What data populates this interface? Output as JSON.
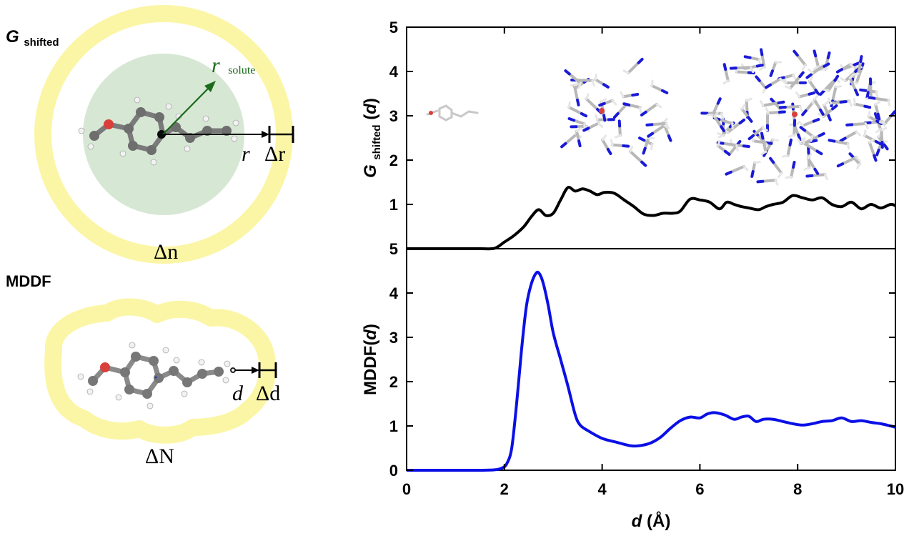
{
  "schematic": {
    "top_label_main": "G",
    "top_label_sub": "shifted",
    "bottom_label": "MDDF",
    "r_solute_main": "r",
    "r_solute_sub": "solute",
    "r_label": "r",
    "delta_r_label": "Δr",
    "delta_n_label": "Δn",
    "d_label": "d",
    "delta_d_label": "Δd",
    "delta_N_label": "ΔN",
    "colors": {
      "shell": "#fbf6a6",
      "solute_sphere": "#cfe4cc",
      "arrow_green": "#1c6b1c",
      "carbon": "#6e6e6e",
      "oxygen": "#d9403a",
      "hydrogen": "#f2f2f2"
    }
  },
  "chart_data": [
    {
      "type": "line",
      "panel": "top",
      "ylabel_main": "G",
      "ylabel_sub": "shifted",
      "ylabel_tail": "(d)",
      "xlim": [
        0,
        10
      ],
      "ylim": [
        0,
        5
      ],
      "y_ticks": [
        1,
        2,
        3,
        4,
        5
      ],
      "series": [
        {
          "color": "#000000",
          "x": [
            0,
            0.5,
            1.0,
            1.5,
            1.8,
            2.0,
            2.2,
            2.4,
            2.55,
            2.7,
            2.85,
            3.0,
            3.15,
            3.3,
            3.45,
            3.6,
            3.75,
            3.9,
            4.05,
            4.25,
            4.45,
            4.65,
            4.85,
            5.05,
            5.25,
            5.45,
            5.6,
            5.8,
            6.0,
            6.2,
            6.4,
            6.55,
            6.7,
            6.85,
            7.0,
            7.2,
            7.35,
            7.5,
            7.7,
            7.9,
            8.1,
            8.3,
            8.5,
            8.7,
            8.9,
            9.1,
            9.3,
            9.5,
            9.7,
            9.9,
            10.0
          ],
          "y": [
            0,
            0,
            0,
            0,
            0.01,
            0.15,
            0.3,
            0.5,
            0.72,
            0.88,
            0.75,
            0.8,
            1.1,
            1.38,
            1.3,
            1.35,
            1.3,
            1.22,
            1.27,
            1.25,
            1.1,
            0.95,
            0.78,
            0.75,
            0.8,
            0.8,
            0.85,
            1.12,
            1.1,
            1.05,
            0.9,
            1.05,
            1.0,
            0.95,
            0.92,
            0.88,
            0.95,
            1.0,
            1.05,
            1.2,
            1.15,
            1.1,
            1.15,
            1.0,
            0.95,
            1.05,
            0.9,
            1.0,
            0.92,
            1.0,
            0.97
          ]
        }
      ]
    },
    {
      "type": "line",
      "panel": "bottom",
      "ylabel_main": "MDDF(d)",
      "xlabel_main": "d",
      "xlabel_unit": " (Å)",
      "xlim": [
        0,
        10
      ],
      "ylim": [
        0,
        5
      ],
      "x_ticks": [
        0,
        2,
        4,
        6,
        8,
        10
      ],
      "y_ticks": [
        0,
        1,
        2,
        3,
        4,
        5
      ],
      "series": [
        {
          "color": "#0b10e6",
          "x": [
            0,
            0.5,
            1.0,
            1.5,
            1.8,
            1.95,
            2.05,
            2.15,
            2.25,
            2.35,
            2.45,
            2.55,
            2.65,
            2.72,
            2.8,
            2.9,
            3.0,
            3.15,
            3.3,
            3.45,
            3.55,
            3.7,
            4.0,
            4.3,
            4.6,
            4.8,
            5.0,
            5.2,
            5.4,
            5.6,
            5.8,
            6.0,
            6.15,
            6.3,
            6.5,
            6.7,
            6.85,
            7.0,
            7.15,
            7.3,
            7.5,
            7.7,
            7.9,
            8.1,
            8.3,
            8.5,
            8.7,
            8.9,
            9.1,
            9.3,
            9.5,
            9.7,
            9.9,
            10.0
          ],
          "y": [
            0,
            0,
            0,
            0,
            0.01,
            0.05,
            0.15,
            0.5,
            1.5,
            2.7,
            3.7,
            4.2,
            4.45,
            4.43,
            4.2,
            3.7,
            3.1,
            2.5,
            1.9,
            1.25,
            1.02,
            0.9,
            0.72,
            0.63,
            0.55,
            0.56,
            0.62,
            0.75,
            0.95,
            1.12,
            1.2,
            1.18,
            1.27,
            1.3,
            1.25,
            1.15,
            1.2,
            1.22,
            1.1,
            1.15,
            1.15,
            1.1,
            1.05,
            1.02,
            1.05,
            1.1,
            1.12,
            1.18,
            1.1,
            1.12,
            1.08,
            1.05,
            1.0,
            0.97
          ]
        }
      ]
    }
  ]
}
